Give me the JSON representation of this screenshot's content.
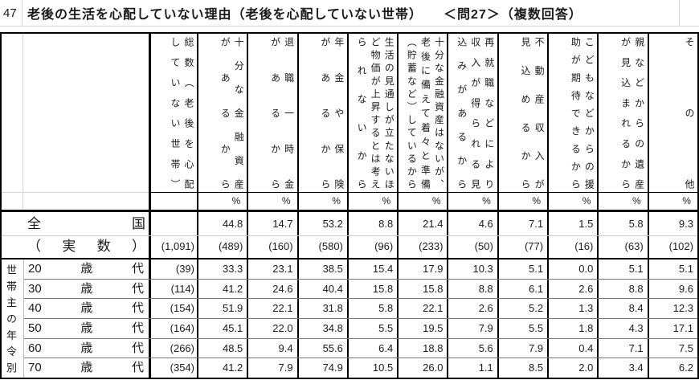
{
  "title": {
    "row_number": "47",
    "text": "老後の生活を心配していない理由（老後を心配していない世帯）　　＜問27＞（複数回答）"
  },
  "table": {
    "headers": [
      [
        "総数（老後を心配",
        "していない世帯）"
      ],
      [
        "十分な金融資産",
        "があるから"
      ],
      [
        "退職一時金",
        "があるから"
      ],
      [
        "年金や保険",
        "があるから"
      ],
      [
        "生活の見通しが立たないほ",
        "ど物価が上昇するとは考え",
        "られないから"
      ],
      [
        "十分な金融資産はないが、",
        "老後に備えて着々と準備",
        "（貯蓄など）しているから"
      ],
      [
        "再就職などにより",
        "収入が得られる見",
        "込みがあるから"
      ],
      [
        "不動産収入が",
        "見込めるから"
      ],
      [
        "こどもなどからの援",
        "助が期待できるから"
      ],
      [
        "親などからの遺産",
        "が見込まれるから"
      ],
      [
        "その他"
      ]
    ],
    "percent": "%",
    "rows": [
      {
        "label": "全国",
        "cells": [
          "",
          "44.8",
          "14.7",
          "53.2",
          "8.8",
          "21.4",
          "4.6",
          "7.1",
          "1.5",
          "5.8",
          "9.3"
        ]
      },
      {
        "label": "（実数）",
        "cells": [
          "(1,091)",
          "(489)",
          "(160)",
          "(580)",
          "(96)",
          "(233)",
          "(50)",
          "(77)",
          "(16)",
          "(63)",
          "(102)"
        ]
      }
    ],
    "age_group_label": "世帯主の年令別",
    "age_rows": [
      {
        "label": "20歳代",
        "cells": [
          "(39)",
          "33.3",
          "23.1",
          "38.5",
          "15.4",
          "17.9",
          "10.3",
          "5.1",
          "0.0",
          "5.1",
          "5.1"
        ]
      },
      {
        "label": "30歳代",
        "cells": [
          "(114)",
          "41.2",
          "24.6",
          "40.4",
          "15.8",
          "15.8",
          "8.8",
          "6.1",
          "2.6",
          "8.8",
          "9.6"
        ]
      },
      {
        "label": "40歳代",
        "cells": [
          "(154)",
          "51.9",
          "22.1",
          "31.8",
          "5.8",
          "22.1",
          "2.6",
          "5.2",
          "1.3",
          "8.4",
          "12.3"
        ]
      },
      {
        "label": "50歳代",
        "cells": [
          "(164)",
          "45.1",
          "22.0",
          "34.8",
          "5.5",
          "19.5",
          "7.9",
          "5.5",
          "1.8",
          "4.3",
          "17.1"
        ]
      },
      {
        "label": "60歳代",
        "cells": [
          "(266)",
          "48.5",
          "9.4",
          "55.6",
          "6.4",
          "18.8",
          "5.6",
          "7.9",
          "0.4",
          "7.1",
          "7.5"
        ]
      },
      {
        "label": "70歳代",
        "cells": [
          "(354)",
          "41.2",
          "7.9",
          "74.9",
          "10.5",
          "26.0",
          "1.1",
          "8.5",
          "2.0",
          "3.4",
          "6.2"
        ]
      }
    ]
  }
}
